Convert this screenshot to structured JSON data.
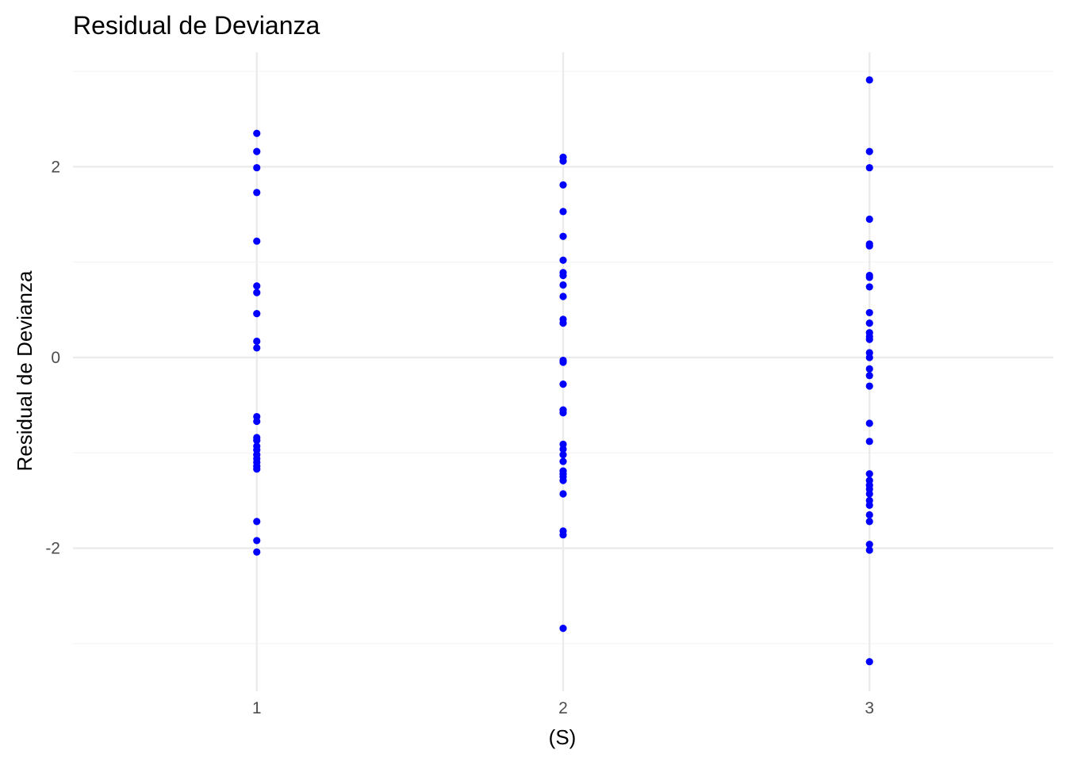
{
  "chart_data": {
    "type": "scatter",
    "title": "Residual de Devianza",
    "xlabel": "(S)",
    "ylabel": "Residual de Devianza",
    "x_ticks": [
      "1",
      "2",
      "3"
    ],
    "y_ticks": [
      "-2",
      "0",
      "2"
    ],
    "xlim": [
      0.4,
      3.6
    ],
    "ylim": [
      -3.5,
      3.2
    ],
    "grid": true,
    "colors": {
      "points": "#0000ff",
      "grid_major": "#ebebeb",
      "grid_minor": "#f4f4f4"
    },
    "series": [
      {
        "x": 1,
        "y": [
          2.35,
          2.16,
          1.99,
          1.73,
          1.22,
          0.75,
          0.68,
          0.46,
          0.17,
          0.1,
          -0.62,
          -0.67,
          -0.84,
          -0.87,
          -0.93,
          -0.97,
          -1.02,
          -1.06,
          -1.1,
          -1.14,
          -1.17,
          -1.72,
          -1.92,
          -2.04
        ]
      },
      {
        "x": 2,
        "y": [
          2.1,
          2.06,
          1.81,
          1.53,
          1.27,
          1.02,
          0.89,
          0.86,
          0.76,
          0.64,
          0.4,
          0.36,
          -0.03,
          -0.05,
          -0.28,
          -0.55,
          -0.58,
          -0.91,
          -0.96,
          -1.02,
          -1.09,
          -1.19,
          -1.22,
          -1.25,
          -1.29,
          -1.43,
          -1.82,
          -1.86,
          -2.84
        ]
      },
      {
        "x": 3,
        "y": [
          2.91,
          2.16,
          1.99,
          1.45,
          1.19,
          1.17,
          0.86,
          0.84,
          0.74,
          0.47,
          0.36,
          0.26,
          0.22,
          0.19,
          0.05,
          0.0,
          -0.12,
          -0.19,
          -0.3,
          -0.69,
          -0.88,
          -1.22,
          -1.29,
          -1.34,
          -1.38,
          -1.43,
          -1.5,
          -1.55,
          -1.65,
          -1.72,
          -1.96,
          -2.02,
          -3.19
        ]
      }
    ]
  }
}
